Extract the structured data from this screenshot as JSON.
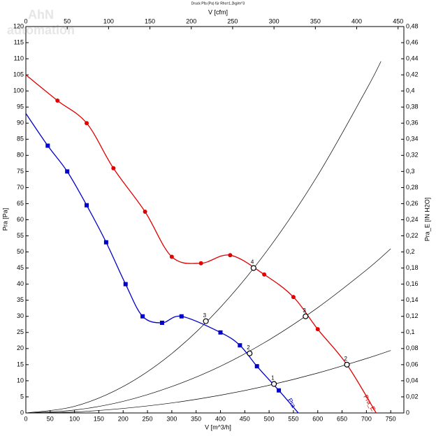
{
  "chart_data": {
    "type": "line",
    "title": "Druck Pfa (Pa) für Rho=1.2kg/m^3",
    "watermark": [
      "AhN",
      "automation"
    ],
    "x_label": "V [m^3/h]",
    "x2_label": "V [cfm]",
    "y_label": "Pra [Pa]",
    "y2_label": "Pra_E [IN H2O]",
    "xlim": [
      0,
      777
    ],
    "x2lim": [
      0,
      457
    ],
    "ylim": [
      0,
      120
    ],
    "y2lim": [
      0,
      0.48
    ],
    "xticks": [
      0,
      50,
      100,
      150,
      200,
      250,
      300,
      350,
      400,
      450,
      500,
      550,
      600,
      650,
      700,
      750
    ],
    "x2ticks": [
      0,
      50,
      100,
      150,
      200,
      250,
      300,
      350,
      400,
      450
    ],
    "yticks": [
      0,
      5,
      10,
      15,
      20,
      25,
      30,
      35,
      40,
      45,
      50,
      55,
      60,
      65,
      70,
      75,
      80,
      85,
      90,
      95,
      100,
      105,
      110,
      115,
      120
    ],
    "y2ticks": [
      0,
      {
        "value": 0.02,
        "label": "0,02"
      },
      {
        "value": 0.04,
        "label": "0,04"
      },
      {
        "value": 0.06,
        "label": "0,06"
      },
      {
        "value": 0.08,
        "label": "0,08"
      },
      {
        "value": 0.1,
        "label": "0,1"
      },
      {
        "value": 0.12,
        "label": "0,12"
      },
      {
        "value": 0.14,
        "label": "0,14"
      },
      {
        "value": 0.16,
        "label": "0,16"
      },
      {
        "value": 0.18,
        "label": "0,18"
      },
      {
        "value": 0.2,
        "label": "0,2"
      },
      {
        "value": 0.22,
        "label": "0,22"
      },
      {
        "value": 0.24,
        "label": "0,24"
      },
      {
        "value": 0.26,
        "label": "0,26"
      },
      {
        "value": 0.28,
        "label": "0,28"
      },
      {
        "value": 0.3,
        "label": "0,3"
      },
      {
        "value": 0.32,
        "label": "0,32"
      },
      {
        "value": 0.34,
        "label": "0,34"
      },
      {
        "value": 0.36,
        "label": "0,36"
      },
      {
        "value": 0.38,
        "label": "0,38"
      },
      {
        "value": 0.4,
        "label": "0,4"
      },
      {
        "value": 0.42,
        "label": "0,42"
      },
      {
        "value": 0.44,
        "label": "0,44"
      },
      {
        "value": 0.46,
        "label": "0,46"
      },
      {
        "value": 0.48,
        "label": "0,48"
      }
    ],
    "series": [
      {
        "name": "Pra_E",
        "color": "#e00000",
        "marker": "circle",
        "x": [
          0,
          65,
          125,
          180,
          245,
          300,
          360,
          420,
          490,
          550,
          600,
          660,
          720
        ],
        "values": [
          105,
          97,
          90,
          76,
          62.5,
          48.5,
          46.5,
          49,
          43,
          36,
          26,
          15,
          0
        ]
      },
      {
        "name": "Pra",
        "color": "#0000c8",
        "marker": "square",
        "x": [
          0,
          45,
          85,
          125,
          165,
          205,
          240,
          280,
          320,
          400,
          440,
          475,
          520,
          560
        ],
        "values": [
          93,
          83,
          75,
          64.5,
          53,
          40,
          30,
          28,
          30,
          25,
          21,
          14.5,
          7,
          0
        ]
      }
    ],
    "system_curves": [
      {
        "x": [
          0,
          100,
          200,
          300,
          400,
          500,
          600,
          700,
          730
        ],
        "values": [
          0,
          2.05,
          8.2,
          18.45,
          32.8,
          51.25,
          73.8,
          100.45,
          109.2
        ]
      },
      {
        "x": [
          0,
          100,
          200,
          300,
          400,
          500,
          600,
          700,
          750
        ],
        "values": [
          0,
          0.9,
          3.6,
          8.2,
          14.5,
          22.7,
          32.7,
          44.4,
          51
        ]
      },
      {
        "x": [
          0,
          100,
          200,
          300,
          400,
          500,
          600,
          700,
          750
        ],
        "values": [
          0,
          0.3,
          1.4,
          3.1,
          5.5,
          8.6,
          12.4,
          16.9,
          19.4
        ]
      }
    ],
    "operating_points": {
      "x": [
        468,
        575,
        660,
        370,
        460,
        510
      ],
      "values": [
        45,
        30,
        15,
        28.5,
        18.5,
        9
      ],
      "labels": [
        "4",
        "3",
        "2",
        "3",
        "2",
        "1"
      ]
    }
  }
}
